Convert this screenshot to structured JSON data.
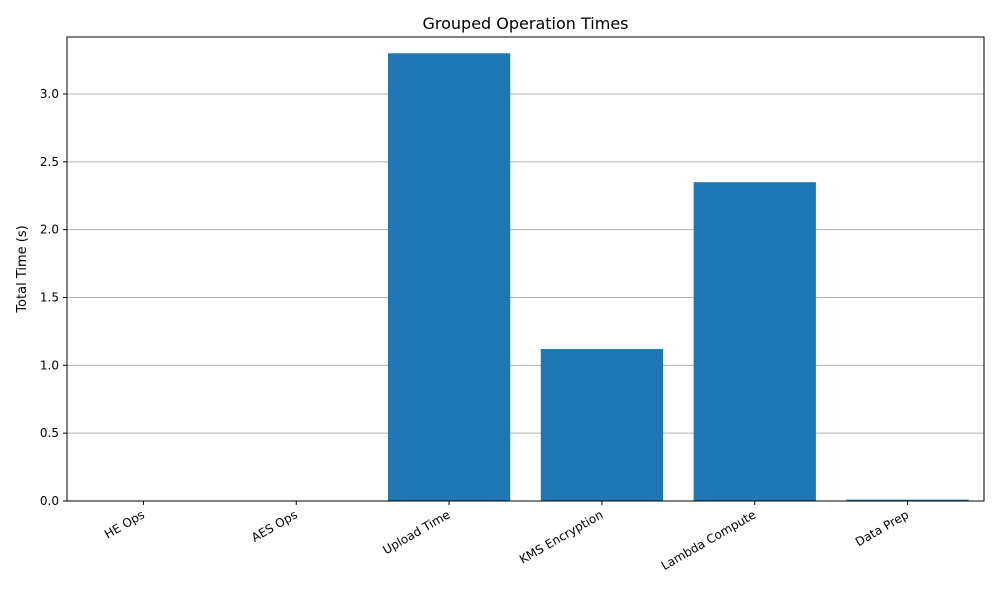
{
  "chart_data": {
    "type": "bar",
    "title": "Grouped Operation Times",
    "xlabel": "",
    "ylabel": "Total Time (s)",
    "categories": [
      "HE Ops",
      "AES Ops",
      "Upload Time",
      "KMS Encryption",
      "Lambda Compute",
      "Data Prep"
    ],
    "values": [
      0.0,
      0.0,
      3.3,
      1.12,
      2.35,
      0.01
    ],
    "ylim": [
      0,
      3.42
    ],
    "yticks": [
      "0.0",
      "0.5",
      "1.0",
      "1.5",
      "2.0",
      "2.5",
      "3.0"
    ],
    "grid": "y",
    "legend": "none",
    "colors": {
      "bar": "#1f77b4",
      "grid": "#b0b0b0",
      "axis": "#000000"
    }
  }
}
